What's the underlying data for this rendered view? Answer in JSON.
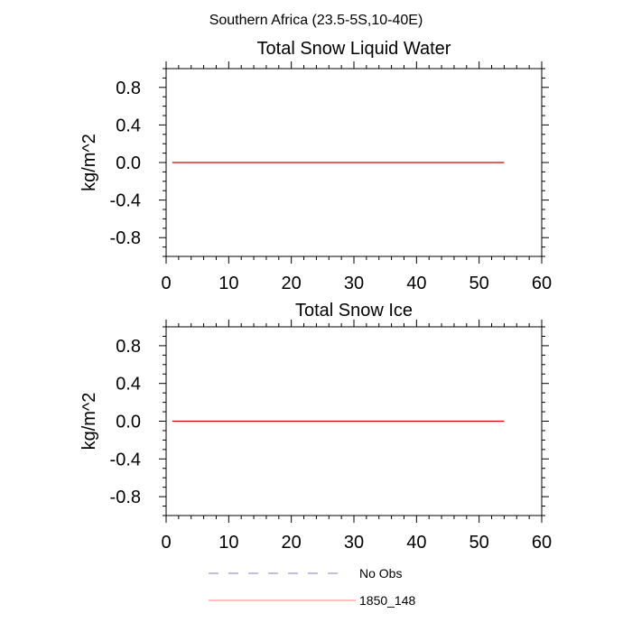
{
  "figure": {
    "main_title": "Southern Africa (23.5-5S,10-40E)"
  },
  "legend": {
    "items": [
      {
        "label": "No Obs",
        "color": "#8080c0",
        "style": "dashed"
      },
      {
        "label": "1850_148",
        "color": "#ff8080",
        "style": "solid"
      }
    ]
  },
  "chart_data": [
    {
      "type": "line",
      "title": "Total Snow Liquid Water",
      "xlabel": "",
      "ylabel": "kg/m^2",
      "xlim": [
        0,
        60
      ],
      "ylim": [
        -1,
        1
      ],
      "xticks": [
        0,
        10,
        20,
        30,
        40,
        50,
        60
      ],
      "yticks": [
        0.8,
        0.4,
        0.0,
        -0.4,
        -0.8
      ],
      "ytick_labels": [
        "0.8",
        "0.4",
        "0.0",
        "-0.4",
        "-0.8"
      ],
      "grid": false,
      "series": [
        {
          "name": "1850_148",
          "color": "#cc0000",
          "x": [
            1,
            54
          ],
          "values": [
            0,
            0
          ]
        }
      ]
    },
    {
      "type": "line",
      "title": "Total Snow Ice",
      "xlabel": "",
      "ylabel": "kg/m^2",
      "xlim": [
        0,
        60
      ],
      "ylim": [
        -1,
        1
      ],
      "xticks": [
        0,
        10,
        20,
        30,
        40,
        50,
        60
      ],
      "yticks": [
        0.8,
        0.4,
        0.0,
        -0.4,
        -0.8
      ],
      "ytick_labels": [
        "0.8",
        "0.4",
        "0.0",
        "-0.4",
        "-0.8"
      ],
      "grid": false,
      "series": [
        {
          "name": "1850_148",
          "color": "#cc0000",
          "x": [
            1,
            54
          ],
          "values": [
            0,
            0
          ]
        }
      ]
    }
  ]
}
